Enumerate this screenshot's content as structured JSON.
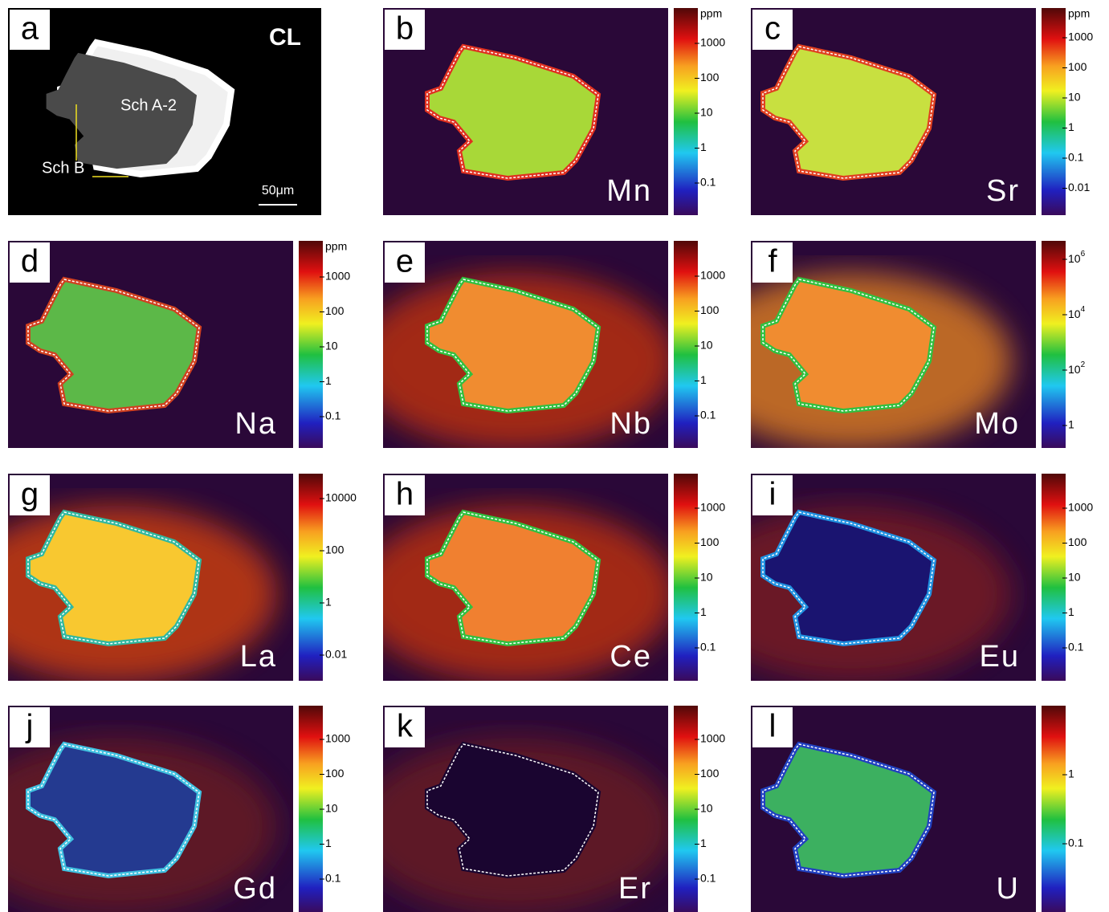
{
  "panels": [
    {
      "letter": "a",
      "title": "CL",
      "labels": [
        "Sch A-2",
        "Sch B"
      ],
      "scale_bar": "50μm"
    },
    {
      "letter": "b",
      "element": "Mn",
      "colorbar": {
        "unit": "ppm",
        "ticks": [
          "1000",
          "100",
          "10",
          "1",
          "0.1"
        ]
      }
    },
    {
      "letter": "c",
      "element": "Sr",
      "colorbar": {
        "unit": "ppm",
        "ticks": [
          "1000",
          "100",
          "10",
          "1",
          "0.1",
          "0.01"
        ]
      }
    },
    {
      "letter": "d",
      "element": "Na",
      "colorbar": {
        "unit": "ppm",
        "ticks": [
          "1000",
          "100",
          "10",
          "1",
          "0.1"
        ]
      }
    },
    {
      "letter": "e",
      "element": "Nb",
      "colorbar": {
        "ticks": [
          "1000",
          "100",
          "10",
          "1",
          "0.1"
        ]
      }
    },
    {
      "letter": "f",
      "element": "Mo",
      "colorbar": {
        "ticks": [
          {
            "base": "10",
            "exp": "6"
          },
          {
            "base": "10",
            "exp": "4"
          },
          {
            "base": "10",
            "exp": "2"
          },
          "1"
        ]
      }
    },
    {
      "letter": "g",
      "element": "La",
      "colorbar": {
        "ticks": [
          "10000",
          "100",
          "1",
          "0.01"
        ]
      }
    },
    {
      "letter": "h",
      "element": "Ce",
      "colorbar": {
        "ticks": [
          "1000",
          "100",
          "10",
          "1",
          "0.1"
        ]
      }
    },
    {
      "letter": "i",
      "element": "Eu",
      "colorbar": {
        "ticks": [
          "1000",
          "100",
          "10",
          "1",
          "0.1"
        ]
      }
    },
    {
      "letter": "j",
      "element": "Gd",
      "colorbar": {
        "ticks": [
          "1000",
          "100",
          "10",
          "1",
          "0.1"
        ]
      }
    },
    {
      "letter": "k",
      "element": "Er",
      "colorbar": {
        "ticks": [
          "1000",
          "100",
          "10",
          "1",
          "0.1"
        ]
      }
    },
    {
      "letter": "l",
      "element": "U",
      "colorbar": {
        "ticks": [
          "1",
          "0.1"
        ]
      }
    }
  ]
}
